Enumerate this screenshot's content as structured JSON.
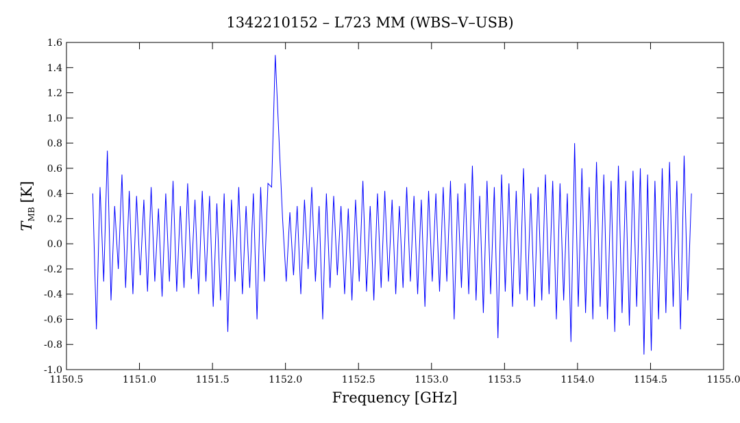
{
  "chart_data": {
    "type": "line",
    "title": "1342210152 – L723 MM (WBS–V–USB)",
    "x_label": "Frequency [GHz]",
    "y_label": "T",
    "y_label_sub": "MB",
    "y_label_unit": "[K]",
    "xlim": [
      1150.5,
      1155.0
    ],
    "xticks": [
      1150.5,
      {
        "value": 1151.0,
        "label": "1151.0"
      },
      1151.5,
      {
        "value": 1152.0,
        "label": "1152.0"
      },
      1152.5,
      {
        "value": 1153.0,
        "label": "1153.0"
      },
      1153.5,
      {
        "value": 1154.0,
        "label": "1154.0"
      },
      1154.5,
      {
        "value": 1155.0,
        "label": "1155.0"
      }
    ],
    "ylim": [
      -1.0,
      1.6
    ],
    "yticks": [
      {
        "value": -1.0,
        "label": "-1.0"
      },
      -0.8,
      -0.6,
      -0.4,
      -0.2,
      {
        "value": 0.0,
        "label": "0.0"
      },
      0.2,
      0.4,
      0.6,
      0.8,
      {
        "value": 1.0,
        "label": "1.0"
      },
      1.2,
      1.4,
      1.6
    ],
    "series": [
      {
        "color": "#0000ff",
        "x": [
          1150.68,
          1150.705,
          1150.73,
          1150.755,
          1150.78,
          1150.805,
          1150.83,
          1150.855,
          1150.88,
          1150.905,
          1150.93,
          1150.955,
          1150.98,
          1151.005,
          1151.03,
          1151.055,
          1151.08,
          1151.105,
          1151.13,
          1151.155,
          1151.18,
          1151.205,
          1151.23,
          1151.255,
          1151.28,
          1151.305,
          1151.33,
          1151.355,
          1151.38,
          1151.405,
          1151.43,
          1151.455,
          1151.48,
          1151.505,
          1151.53,
          1151.555,
          1151.58,
          1151.605,
          1151.63,
          1151.655,
          1151.68,
          1151.705,
          1151.73,
          1151.755,
          1151.78,
          1151.805,
          1151.83,
          1151.855,
          1151.88,
          1151.905,
          1151.93,
          1151.955,
          1151.98,
          1152.005,
          1152.03,
          1152.055,
          1152.08,
          1152.105,
          1152.13,
          1152.155,
          1152.18,
          1152.205,
          1152.23,
          1152.255,
          1152.28,
          1152.305,
          1152.33,
          1152.355,
          1152.38,
          1152.405,
          1152.43,
          1152.455,
          1152.48,
          1152.505,
          1152.53,
          1152.555,
          1152.58,
          1152.605,
          1152.63,
          1152.655,
          1152.68,
          1152.705,
          1152.73,
          1152.755,
          1152.78,
          1152.805,
          1152.83,
          1152.855,
          1152.88,
          1152.905,
          1152.93,
          1152.955,
          1152.98,
          1153.005,
          1153.03,
          1153.055,
          1153.08,
          1153.105,
          1153.13,
          1153.155,
          1153.18,
          1153.205,
          1153.23,
          1153.255,
          1153.28,
          1153.305,
          1153.33,
          1153.355,
          1153.38,
          1153.405,
          1153.43,
          1153.455,
          1153.48,
          1153.505,
          1153.53,
          1153.555,
          1153.58,
          1153.605,
          1153.63,
          1153.655,
          1153.68,
          1153.705,
          1153.73,
          1153.755,
          1153.78,
          1153.805,
          1153.83,
          1153.855,
          1153.88,
          1153.905,
          1153.93,
          1153.955,
          1153.98,
          1154.005,
          1154.03,
          1154.055,
          1154.08,
          1154.105,
          1154.13,
          1154.155,
          1154.18,
          1154.205,
          1154.23,
          1154.255,
          1154.28,
          1154.305,
          1154.33,
          1154.355,
          1154.38,
          1154.405,
          1154.43,
          1154.455,
          1154.48,
          1154.505,
          1154.53,
          1154.555,
          1154.58,
          1154.605,
          1154.63,
          1154.655,
          1154.68,
          1154.705,
          1154.73,
          1154.755,
          1154.78
        ],
        "values": [
          0.4,
          -0.68,
          0.45,
          -0.3,
          0.74,
          -0.45,
          0.3,
          -0.2,
          0.55,
          -0.35,
          0.42,
          -0.4,
          0.38,
          -0.25,
          0.35,
          -0.38,
          0.45,
          -0.3,
          0.28,
          -0.42,
          0.4,
          -0.3,
          0.5,
          -0.38,
          0.3,
          -0.35,
          0.48,
          -0.28,
          0.35,
          -0.4,
          0.42,
          -0.3,
          0.38,
          -0.5,
          0.32,
          -0.45,
          0.4,
          -0.7,
          0.35,
          -0.3,
          0.45,
          -0.4,
          0.3,
          -0.35,
          0.4,
          -0.6,
          0.45,
          -0.3,
          0.48,
          0.45,
          1.5,
          0.85,
          0.2,
          -0.3,
          0.25,
          -0.25,
          0.3,
          -0.4,
          0.35,
          -0.2,
          0.45,
          -0.3,
          0.3,
          -0.6,
          0.4,
          -0.35,
          0.38,
          -0.25,
          0.3,
          -0.4,
          0.28,
          -0.45,
          0.35,
          -0.3,
          0.5,
          -0.38,
          0.3,
          -0.45,
          0.4,
          -0.35,
          0.42,
          -0.3,
          0.35,
          -0.4,
          0.3,
          -0.35,
          0.45,
          -0.3,
          0.38,
          -0.4,
          0.35,
          -0.5,
          0.42,
          -0.3,
          0.4,
          -0.38,
          0.45,
          -0.3,
          0.5,
          -0.6,
          0.4,
          -0.35,
          0.48,
          -0.4,
          0.62,
          -0.45,
          0.38,
          -0.55,
          0.5,
          -0.4,
          0.45,
          -0.75,
          0.55,
          -0.38,
          0.48,
          -0.5,
          0.42,
          -0.4,
          0.6,
          -0.45,
          0.4,
          -0.5,
          0.45,
          -0.45,
          0.55,
          -0.4,
          0.5,
          -0.6,
          0.48,
          -0.45,
          0.4,
          -0.78,
          0.8,
          -0.5,
          0.6,
          -0.55,
          0.45,
          -0.6,
          0.65,
          -0.5,
          0.55,
          -0.6,
          0.5,
          -0.7,
          0.62,
          -0.55,
          0.5,
          -0.65,
          0.58,
          -0.5,
          0.6,
          -0.88,
          0.55,
          -0.85,
          0.5,
          -0.6,
          0.6,
          -0.55,
          0.65,
          -0.5,
          0.5,
          -0.68,
          0.7,
          -0.45,
          0.4
        ]
      }
    ]
  }
}
